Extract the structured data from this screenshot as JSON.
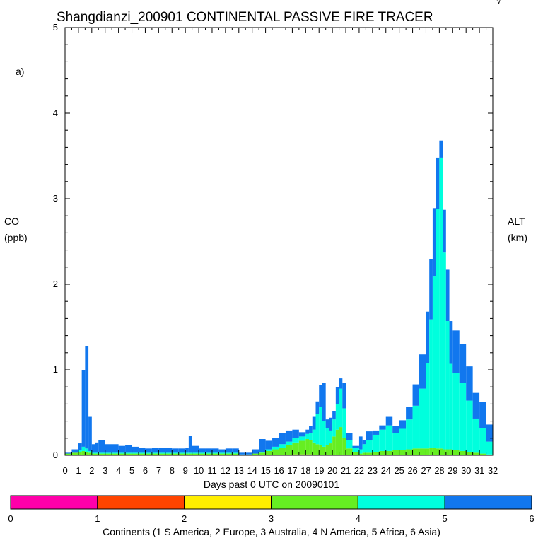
{
  "chart_data": {
    "type": "area",
    "title": "Shangdianzi_200901 CONTINENTAL PASSIVE FIRE TRACER",
    "panel_label": "a)",
    "corner_mark": "√",
    "ylabel_left": [
      "CO",
      "(ppb)"
    ],
    "ylabel_right": [
      "ALT",
      "(km)"
    ],
    "xlabel": "Days past 0 UTC on 20090101",
    "xlim": [
      0,
      32
    ],
    "ylim": [
      0,
      5
    ],
    "x_ticks": [
      "0",
      "1",
      "2",
      "3",
      "4",
      "5",
      "6",
      "7",
      "8",
      "9",
      "10",
      "11",
      "12",
      "13",
      "14",
      "15",
      "16",
      "17",
      "18",
      "19",
      "20",
      "21",
      "22",
      "23",
      "24",
      "25",
      "26",
      "27",
      "28",
      "29",
      "30",
      "31",
      "32"
    ],
    "y_ticks": [
      "0",
      "1",
      "2",
      "3",
      "4",
      "5"
    ],
    "stacking": "stacked",
    "x": [
      0.0,
      0.5,
      1.0,
      1.25,
      1.5,
      1.75,
      2.0,
      2.25,
      2.5,
      3.0,
      3.5,
      4.0,
      4.5,
      5.0,
      5.5,
      6.0,
      6.5,
      7.0,
      7.5,
      8.0,
      8.5,
      9.0,
      9.25,
      9.5,
      10.0,
      10.5,
      11.0,
      11.5,
      12.0,
      12.5,
      13.0,
      13.5,
      14.0,
      14.5,
      15.0,
      15.5,
      16.0,
      16.5,
      17.0,
      17.5,
      18.0,
      18.25,
      18.5,
      18.75,
      19.0,
      19.25,
      19.5,
      19.75,
      20.0,
      20.25,
      20.5,
      20.75,
      21.0,
      21.5,
      22.0,
      22.25,
      22.5,
      23.0,
      23.5,
      24.0,
      24.5,
      25.0,
      25.5,
      26.0,
      26.5,
      27.0,
      27.25,
      27.5,
      27.75,
      28.0,
      28.25,
      28.5,
      28.75,
      29.0,
      29.5,
      30.0,
      30.5,
      31.0,
      31.5
    ],
    "series": [
      {
        "name": "S America",
        "color": "#ff00aa",
        "values": [
          0,
          0,
          0,
          0,
          0,
          0,
          0,
          0,
          0,
          0,
          0,
          0,
          0,
          0,
          0,
          0,
          0,
          0,
          0,
          0,
          0,
          0,
          0,
          0,
          0,
          0,
          0,
          0,
          0,
          0,
          0,
          0,
          0,
          0,
          0,
          0,
          0,
          0,
          0,
          0,
          0,
          0,
          0,
          0,
          0,
          0,
          0,
          0,
          0,
          0,
          0,
          0,
          0,
          0,
          0,
          0,
          0,
          0,
          0,
          0,
          0,
          0,
          0,
          0,
          0,
          0,
          0,
          0,
          0,
          0,
          0,
          0,
          0,
          0,
          0,
          0,
          0,
          0,
          0
        ]
      },
      {
        "name": "Europe",
        "color": "#ff4400",
        "values": [
          0,
          0,
          0,
          0,
          0,
          0,
          0,
          0,
          0,
          0,
          0,
          0,
          0,
          0,
          0,
          0,
          0,
          0,
          0,
          0,
          0,
          0,
          0,
          0,
          0,
          0,
          0,
          0,
          0,
          0,
          0,
          0,
          0,
          0,
          0,
          0,
          0,
          0,
          0.01,
          0.01,
          0.01,
          0.01,
          0,
          0,
          0,
          0,
          0,
          0,
          0,
          0,
          0,
          0,
          0,
          0,
          0,
          0,
          0,
          0,
          0,
          0,
          0,
          0,
          0,
          0,
          0,
          0,
          0,
          0,
          0,
          0,
          0,
          0,
          0,
          0,
          0,
          0,
          0,
          0,
          0
        ]
      },
      {
        "name": "Australia",
        "color": "#ffee00",
        "values": [
          0,
          0,
          0,
          0,
          0,
          0,
          0,
          0,
          0,
          0,
          0,
          0,
          0,
          0,
          0,
          0,
          0,
          0,
          0,
          0,
          0,
          0,
          0,
          0,
          0,
          0,
          0,
          0,
          0,
          0,
          0,
          0,
          0,
          0,
          0,
          0,
          0,
          0,
          0,
          0,
          0,
          0,
          0,
          0,
          0,
          0,
          0,
          0,
          0,
          0,
          0,
          0,
          0,
          0,
          0,
          0,
          0,
          0,
          0,
          0,
          0,
          0,
          0,
          0,
          0,
          0,
          0,
          0,
          0,
          0,
          0,
          0,
          0,
          0,
          0,
          0,
          0,
          0,
          0
        ]
      },
      {
        "name": "N America",
        "color": "#66ee22",
        "values": [
          0.02,
          0.03,
          0.04,
          0.05,
          0.04,
          0.03,
          0.02,
          0.02,
          0.02,
          0.02,
          0.02,
          0.02,
          0.02,
          0.02,
          0.02,
          0.02,
          0.02,
          0.02,
          0.02,
          0.02,
          0.02,
          0.02,
          0.02,
          0.02,
          0.02,
          0.02,
          0.02,
          0.02,
          0.02,
          0.02,
          0.01,
          0.01,
          0.02,
          0.03,
          0.05,
          0.07,
          0.09,
          0.12,
          0.14,
          0.16,
          0.18,
          0.17,
          0.15,
          0.13,
          0.12,
          0.1,
          0.12,
          0.14,
          0.22,
          0.3,
          0.33,
          0.2,
          0.08,
          0.04,
          0.02,
          0.03,
          0.03,
          0.04,
          0.05,
          0.05,
          0.06,
          0.06,
          0.07,
          0.08,
          0.08,
          0.08,
          0.09,
          0.09,
          0.08,
          0.08,
          0.07,
          0.07,
          0.07,
          0.06,
          0.05,
          0.04,
          0.03,
          0.02,
          0.01
        ]
      },
      {
        "name": "Africa",
        "color": "#00ffdd",
        "values": [
          0.0,
          0.0,
          0.02,
          0.05,
          0.04,
          0.02,
          0.01,
          0.01,
          0.01,
          0.01,
          0.01,
          0.01,
          0.01,
          0.01,
          0.01,
          0.01,
          0.01,
          0.01,
          0.01,
          0.01,
          0.01,
          0.01,
          0.01,
          0.01,
          0.01,
          0.01,
          0.01,
          0.01,
          0.01,
          0.01,
          0.0,
          0.0,
          0.0,
          0.01,
          0.02,
          0.03,
          0.04,
          0.04,
          0.05,
          0.05,
          0.06,
          0.08,
          0.15,
          0.35,
          0.45,
          0.3,
          0.2,
          0.15,
          0.2,
          0.3,
          0.45,
          0.35,
          0.1,
          0.05,
          0.05,
          0.1,
          0.15,
          0.2,
          0.25,
          0.3,
          0.2,
          0.25,
          0.35,
          0.5,
          0.7,
          1.0,
          1.5,
          2.0,
          2.8,
          3.4,
          2.3,
          1.5,
          1.0,
          0.9,
          0.8,
          0.6,
          0.4,
          0.3,
          0.15
        ]
      },
      {
        "name": "Asia",
        "color": "#1177ee",
        "values": [
          0.01,
          0.04,
          0.08,
          0.9,
          1.2,
          0.4,
          0.1,
          0.12,
          0.15,
          0.1,
          0.1,
          0.08,
          0.09,
          0.07,
          0.06,
          0.05,
          0.06,
          0.06,
          0.06,
          0.05,
          0.05,
          0.06,
          0.2,
          0.08,
          0.05,
          0.05,
          0.05,
          0.04,
          0.05,
          0.05,
          0.02,
          0.02,
          0.05,
          0.15,
          0.1,
          0.1,
          0.13,
          0.13,
          0.1,
          0.05,
          0.05,
          0.08,
          0.15,
          0.15,
          0.25,
          0.45,
          0.1,
          0.15,
          0.1,
          0.2,
          0.12,
          0.3,
          0.08,
          0.02,
          0.15,
          0.05,
          0.1,
          0.05,
          0.05,
          0.1,
          0.08,
          0.1,
          0.15,
          0.25,
          0.4,
          0.6,
          0.7,
          0.8,
          0.6,
          0.2,
          0.5,
          0.6,
          0.5,
          0.5,
          0.45,
          0.4,
          0.3,
          0.3,
          0.2
        ]
      }
    ],
    "colorbar": {
      "ticks": [
        "0",
        "1",
        "2",
        "3",
        "4",
        "5",
        "6"
      ],
      "colors": [
        "#ff00aa",
        "#ff4400",
        "#ffee00",
        "#66ee22",
        "#00ffdd",
        "#1177ee"
      ],
      "caption": "Continents (1 S America, 2 Europe, 3 Australia, 4 N America, 5 Africa, 6 Asia)"
    }
  }
}
